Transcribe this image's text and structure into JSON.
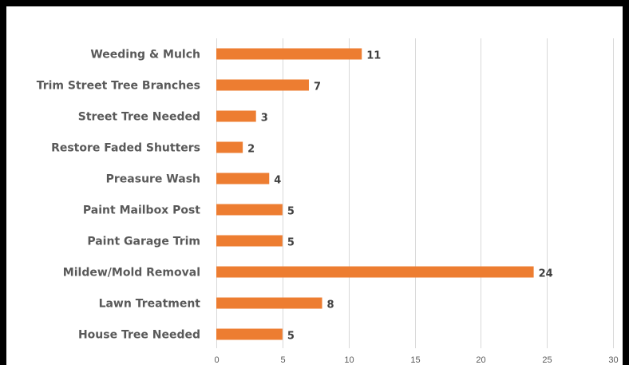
{
  "chart_data": {
    "type": "bar",
    "orientation": "horizontal",
    "title": "",
    "xlabel": "",
    "ylabel": "",
    "categories": [
      "Weeding & Mulch",
      "Trim Street Tree Branches",
      "Street Tree Needed",
      "Restore Faded Shutters",
      "Preasure Wash",
      "Paint Mailbox Post",
      "Paint Garage Trim",
      "Mildew/Mold Removal",
      "Lawn Treatment",
      "House Tree Needed"
    ],
    "values": [
      11,
      7,
      3,
      2,
      4,
      5,
      5,
      24,
      8,
      5
    ],
    "xlim": [
      0,
      30
    ],
    "xticks": [
      0,
      5,
      10,
      15,
      20,
      25,
      30
    ],
    "grid": "vertical",
    "legend": "none",
    "data_labels": true,
    "bar_color": "#ed7d31",
    "background_color": "#ffffff",
    "frame_color": "#000000"
  }
}
